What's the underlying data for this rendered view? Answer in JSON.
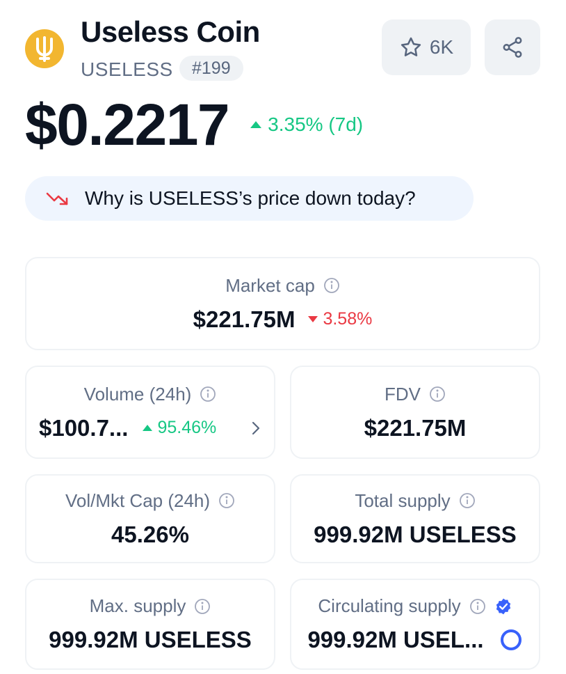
{
  "coin": {
    "name": "Useless Coin",
    "symbol": "USELESS",
    "rank": "#199",
    "watchlist_count": "6K",
    "logo_color": "#f2b630"
  },
  "price": {
    "value": "$0.2217",
    "change": "3.35% (7d)",
    "direction": "up"
  },
  "why_prompt": "Why is USELESS’s price down today?",
  "stats": {
    "market_cap": {
      "label": "Market cap",
      "value": "$221.75M",
      "change": "3.58%",
      "direction": "down"
    },
    "volume_24h": {
      "label": "Volume (24h)",
      "value": "$100.7...",
      "change": "95.46%",
      "direction": "up"
    },
    "fdv": {
      "label": "FDV",
      "value": "$221.75M"
    },
    "vol_mkt_cap": {
      "label": "Vol/Mkt Cap (24h)",
      "value": "45.26%"
    },
    "total_supply": {
      "label": "Total supply",
      "value": "999.92M USELESS"
    },
    "max_supply": {
      "label": "Max. supply",
      "value": "999.92M USELESS"
    },
    "circulating_supply": {
      "label": "Circulating supply",
      "value": "999.92M USEL...",
      "verified": true,
      "progress_fraction": 1.0
    }
  },
  "colors": {
    "up": "#16c784",
    "down": "#ea3943",
    "verified": "#3861fb",
    "muted": "#616e85"
  },
  "icons": [
    "logo-icon",
    "star-icon",
    "share-icon",
    "trend-down-icon",
    "info-icon",
    "chevron-right-icon",
    "verified-badge-icon",
    "progress-ring-icon",
    "triangle-up-icon",
    "triangle-down-icon"
  ]
}
